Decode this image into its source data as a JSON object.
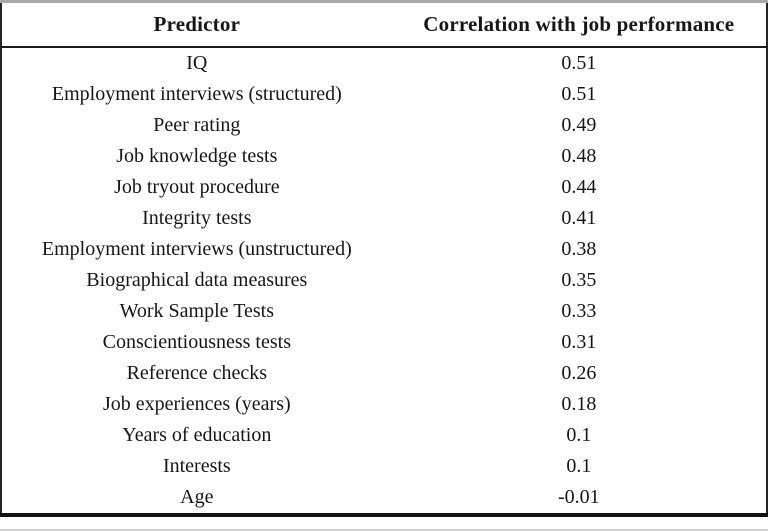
{
  "table": {
    "headers": [
      "Predictor",
      "Correlation with job performance"
    ],
    "rows": [
      [
        "IQ",
        "0.51"
      ],
      [
        "Employment interviews (structured)",
        "0.51"
      ],
      [
        "Peer rating",
        "0.49"
      ],
      [
        "Job knowledge tests",
        "0.48"
      ],
      [
        "Job tryout procedure",
        "0.44"
      ],
      [
        "Integrity tests",
        "0.41"
      ],
      [
        "Employment interviews (unstructured)",
        "0.38"
      ],
      [
        "Biographical data measures",
        "0.35"
      ],
      [
        "Work Sample Tests",
        "0.33"
      ],
      [
        "Conscientiousness tests",
        "0.31"
      ],
      [
        "Reference checks",
        "0.26"
      ],
      [
        "Job experiences (years)",
        "0.18"
      ],
      [
        "Years of education",
        "0.1"
      ],
      [
        "Interests",
        "0.1"
      ],
      [
        "Age",
        "-0.01"
      ]
    ]
  },
  "chart_data": {
    "type": "table",
    "columns": [
      "Predictor",
      "Correlation with job performance"
    ],
    "predictors": [
      "IQ",
      "Employment interviews (structured)",
      "Peer rating",
      "Job knowledge tests",
      "Job tryout procedure",
      "Integrity tests",
      "Employment interviews (unstructured)",
      "Biographical data measures",
      "Work Sample Tests",
      "Conscientiousness tests",
      "Reference checks",
      "Job experiences (years)",
      "Years of education",
      "Interests",
      "Age"
    ],
    "correlations": [
      0.51,
      0.51,
      0.49,
      0.48,
      0.44,
      0.41,
      0.38,
      0.35,
      0.33,
      0.31,
      0.26,
      0.18,
      0.1,
      0.1,
      -0.01
    ]
  },
  "colors": {
    "text": "#161616",
    "background": "#ffffff",
    "border_dark": "#1a1a1a",
    "border_side": "#262626",
    "border_top_light": "#a8a8a8",
    "border_bottom_light": "#d2d2d2"
  }
}
